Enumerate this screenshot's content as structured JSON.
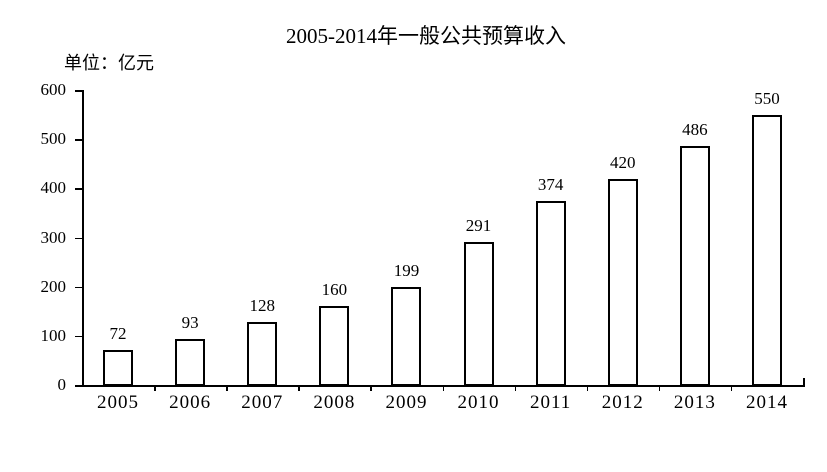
{
  "chart_data": {
    "type": "bar",
    "title": "2005-2014年一般公共预算收入",
    "unit": "单位：亿元",
    "categories": [
      "2005",
      "2006",
      "2007",
      "2008",
      "2009",
      "2010",
      "2011",
      "2012",
      "2013",
      "2014"
    ],
    "values": [
      72,
      93,
      128,
      160,
      199,
      291,
      374,
      420,
      486,
      550
    ],
    "y_ticks": [
      0,
      100,
      200,
      300,
      400,
      500,
      600
    ],
    "ylim": [
      0,
      600
    ],
    "xlabel": "",
    "ylabel": "",
    "grid": false,
    "legend": false,
    "data_labels": true,
    "bar_fill": "#ffffff",
    "bar_border": "#000000",
    "axis_color": "#000000",
    "text_color": "#000000",
    "background": "#ffffff"
  }
}
